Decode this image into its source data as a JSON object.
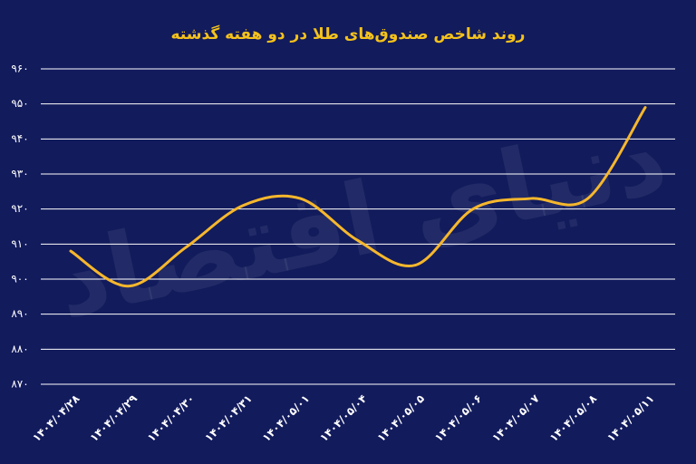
{
  "chart_data": {
    "type": "line",
    "title": "روند شاخص صندوق‌های طلا در دو هفته گذشته",
    "watermark": "دنیای اقتصاد",
    "categories": [
      "۱۴۰۴/۰۴/۲۸",
      "۱۴۰۴/۰۴/۲۹",
      "۱۴۰۴/۰۴/۳۰",
      "۱۴۰۴/۰۴/۳۱",
      "۱۴۰۴/۰۵/۰۱",
      "۱۴۰۴/۰۵/۰۴",
      "۱۴۰۴/۰۵/۰۵",
      "۱۴۰۴/۰۵/۰۶",
      "۱۴۰۴/۰۵/۰۷",
      "۱۴۰۴/۰۵/۰۸",
      "۱۴۰۴/۰۵/۱۱"
    ],
    "series": [
      {
        "color": "#f6b72c",
        "values": [
          908,
          898,
          909,
          921,
          923,
          911,
          904,
          920,
          923,
          923,
          949
        ]
      }
    ],
    "ylim": [
      870,
      960
    ],
    "yticks": [
      {
        "value": 870,
        "label": "۸۷۰"
      },
      {
        "value": 880,
        "label": "۸۸۰"
      },
      {
        "value": 890,
        "label": "۸۹۰"
      },
      {
        "value": 900,
        "label": "۹۰۰"
      },
      {
        "value": 910,
        "label": "۹۱۰"
      },
      {
        "value": 920,
        "label": "۹۲۰"
      },
      {
        "value": 930,
        "label": "۹۳۰"
      },
      {
        "value": 940,
        "label": "۹۴۰"
      },
      {
        "value": 950,
        "label": "۹۵۰"
      },
      {
        "value": 960,
        "label": "۹۶۰"
      }
    ],
    "grid": true
  }
}
